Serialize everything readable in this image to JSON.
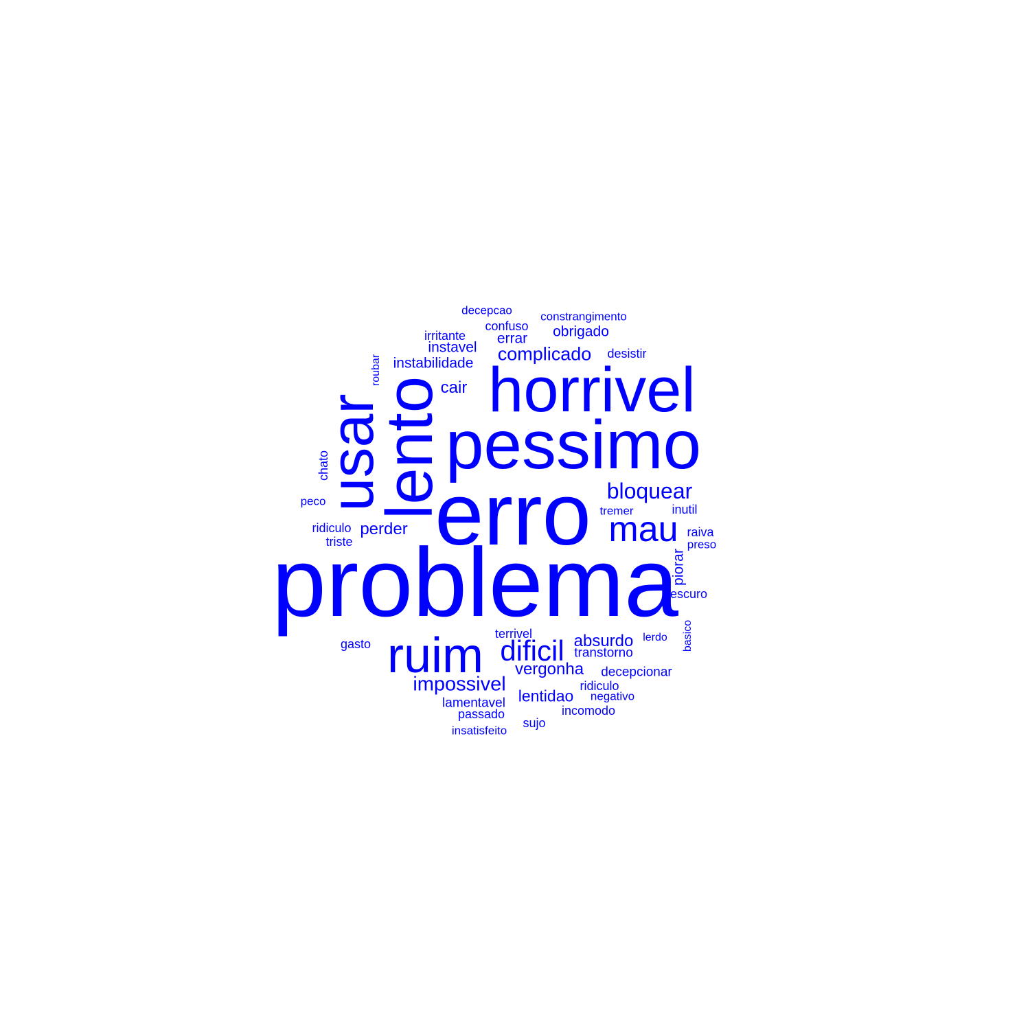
{
  "colors": {
    "background": "#ffffff",
    "words": "#0000ff"
  },
  "words": {
    "problema": "problema",
    "erro": "erro",
    "pessimo": "pessimo",
    "horrivel": "horrivel",
    "lento": "lento",
    "usar": "usar",
    "ruim": "ruim",
    "mau": "mau",
    "dificil": "dificil",
    "bloquear": "bloquear",
    "impossivel": "impossivel",
    "complicado": "complicado",
    "absurdo": "absurdo",
    "vergonha": "vergonha",
    "lentidao": "lentidao",
    "perder": "perder",
    "cair": "cair",
    "piorar": "piorar",
    "errar": "errar",
    "instabilidade": "instabilidade",
    "obrigado": "obrigado",
    "instavel": "instavel",
    "transtorno": "transtorno",
    "decepcionar": "decepcionar",
    "lamentavel": "lamentavel",
    "terrivel": "terrivel",
    "confuso": "confuso",
    "inutil": "inutil",
    "desistir": "desistir",
    "raiva": "raiva",
    "passado": "passado",
    "incomodo": "incomodo",
    "ridiculo_right": "ridiculo",
    "escuro": "escuro",
    "triste": "triste",
    "ridiculo_left": "ridiculo",
    "gasto": "gasto",
    "chato": "chato",
    "irritante": "irritante",
    "sujo": "sujo",
    "constrangimento": "constrangimento",
    "decepcao": "decepcao",
    "negativo": "negativo",
    "preso": "preso",
    "peco": "peco",
    "tremer": "tremer",
    "insatisfeito": "insatisfeito",
    "lerdo": "lerdo",
    "basico": "basico",
    "roubar": "roubar"
  }
}
